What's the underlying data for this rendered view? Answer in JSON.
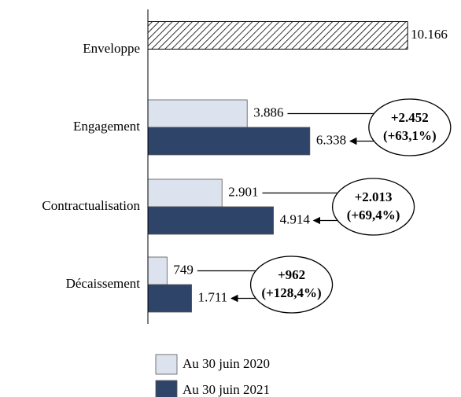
{
  "chart_data": {
    "type": "bar",
    "orientation": "horizontal",
    "categories": [
      "Enveloppe",
      "Engagement",
      "Contractualisation",
      "Décaissement"
    ],
    "envelope": {
      "value": 10166,
      "value_label": "10.166",
      "pattern": "hatch",
      "color": "#000000"
    },
    "series": [
      {
        "name": "Au 30 juin 2020",
        "color": "#dde3ee",
        "values": [
          null,
          3886,
          2901,
          749
        ],
        "value_labels": [
          null,
          "3.886",
          "2.901",
          "749"
        ]
      },
      {
        "name": "Au 30 juin 2021",
        "color": "#2e4468",
        "values": [
          null,
          6338,
          4914,
          1711
        ],
        "value_labels": [
          null,
          "6.338",
          "4.914",
          "1.711"
        ]
      }
    ],
    "annotations": [
      null,
      [
        "+2.452",
        "(+63,1%)"
      ],
      [
        "+2.013",
        "(+69,4%)"
      ],
      [
        "+962",
        "(+128,4%)"
      ]
    ],
    "xlim": [
      0,
      10500
    ]
  }
}
